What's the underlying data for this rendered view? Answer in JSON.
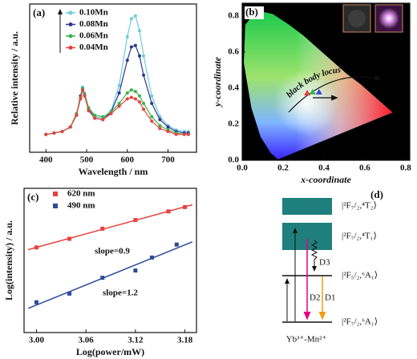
{
  "chart_data": [
    {
      "type": "line",
      "panel_label": "(a)",
      "x_label": "Wavelength / nm",
      "y_label": "Relative intensity / a.u.",
      "x": [
        400,
        420,
        440,
        460,
        475,
        485,
        490,
        495,
        505,
        520,
        540,
        560,
        580,
        600,
        610,
        620,
        630,
        640,
        660,
        680,
        700,
        720,
        740,
        750
      ],
      "series": [
        {
          "name": "0.10Mn",
          "color": "#6ecbdc",
          "values": [
            0.12,
            0.13,
            0.14,
            0.17,
            0.25,
            0.38,
            0.44,
            0.4,
            0.3,
            0.24,
            0.23,
            0.28,
            0.45,
            0.78,
            0.9,
            0.92,
            0.82,
            0.65,
            0.38,
            0.24,
            0.18,
            0.15,
            0.14,
            0.14
          ]
        },
        {
          "name": "0.08Mn",
          "color": "#2b3990",
          "values": [
            0.12,
            0.13,
            0.14,
            0.17,
            0.25,
            0.38,
            0.43,
            0.39,
            0.29,
            0.23,
            0.22,
            0.27,
            0.4,
            0.62,
            0.71,
            0.72,
            0.65,
            0.52,
            0.33,
            0.22,
            0.17,
            0.14,
            0.13,
            0.13
          ]
        },
        {
          "name": "0.06Mn",
          "color": "#3cb44b",
          "values": [
            0.12,
            0.13,
            0.14,
            0.17,
            0.26,
            0.37,
            0.43,
            0.39,
            0.3,
            0.25,
            0.24,
            0.27,
            0.33,
            0.4,
            0.42,
            0.41,
            0.38,
            0.33,
            0.24,
            0.18,
            0.15,
            0.13,
            0.12,
            0.12
          ]
        },
        {
          "name": "0.04Mn",
          "color": "#e8413c",
          "values": [
            0.12,
            0.13,
            0.14,
            0.17,
            0.25,
            0.36,
            0.42,
            0.38,
            0.28,
            0.23,
            0.22,
            0.26,
            0.31,
            0.36,
            0.37,
            0.36,
            0.34,
            0.29,
            0.21,
            0.16,
            0.14,
            0.12,
            0.12,
            0.12
          ]
        }
      ],
      "xlim": [
        360,
        770
      ],
      "ylim": [
        0,
        1
      ],
      "xticks": [
        400,
        500,
        600,
        700
      ]
    },
    {
      "type": "scatter",
      "panel_label": "(b)",
      "x_label": "x-coordinate",
      "y_label": "y-coordinate",
      "annotation": "black body locus",
      "x": [
        0.318,
        0.345,
        0.376
      ],
      "values": [
        0.373,
        0.378,
        0.378
      ],
      "colors": [
        "#e8413c",
        "#3cb44b",
        "#3a4bd8"
      ],
      "xlim": [
        0,
        0.82
      ],
      "ylim": [
        0,
        0.87
      ],
      "xticks": [
        {
          "value": 0,
          "label": "0.0"
        },
        0.2,
        0.4,
        0.6,
        0.8
      ],
      "yticks": [
        {
          "value": 0,
          "label": "0.0"
        },
        0.2,
        0.4,
        0.6,
        0.8
      ]
    },
    {
      "type": "scatter",
      "panel_label": "(c)",
      "x_label": "Log(power/mW)",
      "y_label": "Log(intensity) / a.u.",
      "series": [
        {
          "name": "620 nm",
          "color": "#e8413c",
          "x": [
            3.0,
            3.04,
            3.08,
            3.12,
            3.16,
            3.18
          ],
          "values": [
            5.9,
            6.5,
            7.2,
            7.8,
            8.4,
            8.7
          ],
          "annotation": "slope=0.9"
        },
        {
          "name": "490 nm",
          "color": "#2b4a9b",
          "x": [
            3.0,
            3.04,
            3.08,
            3.12,
            3.14,
            3.17
          ],
          "values": [
            2.1,
            2.7,
            3.8,
            4.3,
            5.2,
            6.1
          ],
          "annotation": "slope=1.2"
        }
      ],
      "xlim": [
        2.985,
        3.194
      ],
      "ylim": [
        0,
        10
      ],
      "xticks": [
        {
          "value": 3,
          "label": "3.00"
        },
        3.06,
        3.12,
        3.18
      ]
    }
  ],
  "diagram": {
    "panel_label": "(d)",
    "levels": [
      "|²F₇/₂,⁴T₂⟩",
      "|²F₇/₂,⁴T₁⟩",
      "|²F₅/₂,⁶A₁⟩",
      "|²F₇/₂,⁶A₁⟩"
    ],
    "transitions": [
      "D3",
      "D2",
      "D1"
    ],
    "caption": "Yb³⁺-Mn²⁺"
  }
}
